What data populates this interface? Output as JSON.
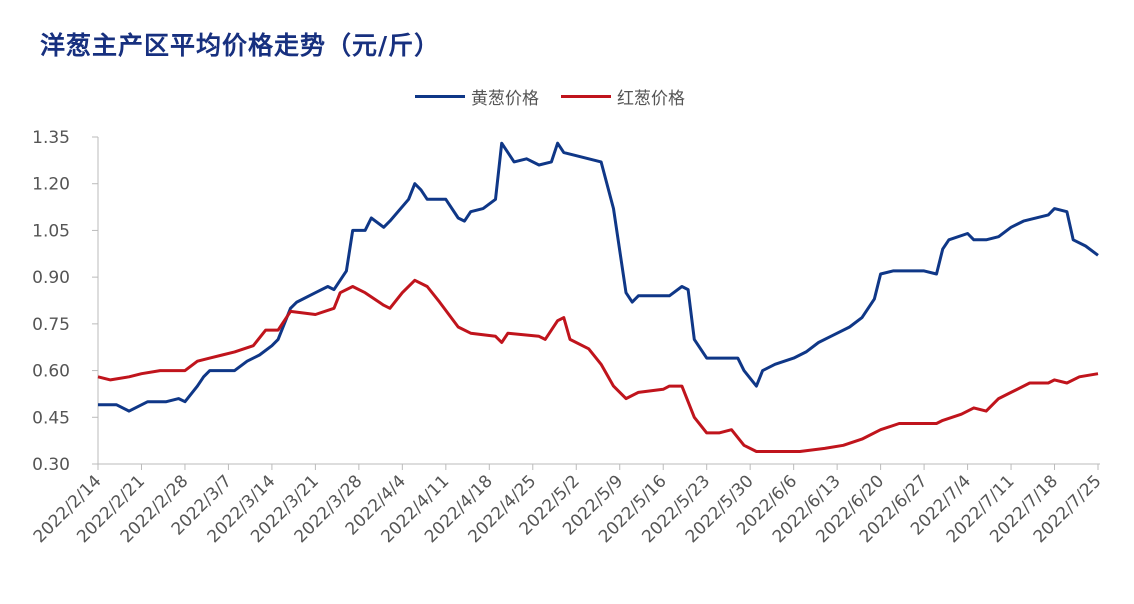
{
  "chart_data": {
    "type": "line",
    "title": "洋葱主产区平均价格走势（元/斤）",
    "xlabel": "",
    "ylabel": "",
    "ylim": [
      0.3,
      1.35
    ],
    "yticks": [
      "0.30",
      "0.45",
      "0.60",
      "0.75",
      "0.90",
      "1.05",
      "1.20",
      "1.35"
    ],
    "xlim": [
      "2022/2/14",
      "2022/7/25"
    ],
    "xticks": [
      "2022/2/14",
      "2022/2/21",
      "2022/2/28",
      "2022/3/7",
      "2022/3/14",
      "2022/3/21",
      "2022/3/28",
      "2022/4/4",
      "2022/4/11",
      "2022/4/18",
      "2022/4/25",
      "2022/5/2",
      "2022/5/9",
      "2022/5/16",
      "2022/5/23",
      "2022/5/30",
      "2022/6/6",
      "2022/6/13",
      "2022/6/20",
      "2022/6/27",
      "2022/7/4",
      "2022/7/11",
      "2022/7/18",
      "2022/7/25"
    ],
    "grid": false,
    "legend_position": "top-right",
    "series": [
      {
        "name": "黄葱价格",
        "color": "#0f3787",
        "points": [
          [
            "2022/2/14",
            0.49
          ],
          [
            "2022/2/17",
            0.49
          ],
          [
            "2022/2/19",
            0.47
          ],
          [
            "2022/2/21",
            0.49
          ],
          [
            "2022/2/22",
            0.5
          ],
          [
            "2022/2/25",
            0.5
          ],
          [
            "2022/2/27",
            0.51
          ],
          [
            "2022/2/28",
            0.5
          ],
          [
            "2022/3/2",
            0.55
          ],
          [
            "2022/3/3",
            0.58
          ],
          [
            "2022/3/4",
            0.6
          ],
          [
            "2022/3/8",
            0.6
          ],
          [
            "2022/3/10",
            0.63
          ],
          [
            "2022/3/12",
            0.65
          ],
          [
            "2022/3/14",
            0.68
          ],
          [
            "2022/3/15",
            0.7
          ],
          [
            "2022/3/17",
            0.8
          ],
          [
            "2022/3/18",
            0.82
          ],
          [
            "2022/3/21",
            0.85
          ],
          [
            "2022/3/23",
            0.87
          ],
          [
            "2022/3/24",
            0.86
          ],
          [
            "2022/3/26",
            0.92
          ],
          [
            "2022/3/27",
            1.05
          ],
          [
            "2022/3/29",
            1.05
          ],
          [
            "2022/3/30",
            1.09
          ],
          [
            "2022/4/1",
            1.06
          ],
          [
            "2022/4/2",
            1.08
          ],
          [
            "2022/4/5",
            1.15
          ],
          [
            "2022/4/6",
            1.2
          ],
          [
            "2022/4/7",
            1.18
          ],
          [
            "2022/4/8",
            1.15
          ],
          [
            "2022/4/11",
            1.15
          ],
          [
            "2022/4/13",
            1.09
          ],
          [
            "2022/4/14",
            1.08
          ],
          [
            "2022/4/15",
            1.11
          ],
          [
            "2022/4/17",
            1.12
          ],
          [
            "2022/4/19",
            1.15
          ],
          [
            "2022/4/20",
            1.33
          ],
          [
            "2022/4/22",
            1.27
          ],
          [
            "2022/4/24",
            1.28
          ],
          [
            "2022/4/26",
            1.26
          ],
          [
            "2022/4/28",
            1.27
          ],
          [
            "2022/4/29",
            1.33
          ],
          [
            "2022/4/30",
            1.3
          ],
          [
            "2022/5/2",
            1.29
          ],
          [
            "2022/5/6",
            1.27
          ],
          [
            "2022/5/8",
            1.12
          ],
          [
            "2022/5/10",
            0.85
          ],
          [
            "2022/5/11",
            0.82
          ],
          [
            "2022/5/12",
            0.84
          ],
          [
            "2022/5/17",
            0.84
          ],
          [
            "2022/5/19",
            0.87
          ],
          [
            "2022/5/20",
            0.86
          ],
          [
            "2022/5/21",
            0.7
          ],
          [
            "2022/5/23",
            0.64
          ],
          [
            "2022/5/28",
            0.64
          ],
          [
            "2022/5/29",
            0.6
          ],
          [
            "2022/5/31",
            0.55
          ],
          [
            "2022/6/1",
            0.6
          ],
          [
            "2022/6/3",
            0.62
          ],
          [
            "2022/6/6",
            0.64
          ],
          [
            "2022/6/8",
            0.66
          ],
          [
            "2022/6/10",
            0.69
          ],
          [
            "2022/6/12",
            0.71
          ],
          [
            "2022/6/15",
            0.74
          ],
          [
            "2022/6/17",
            0.77
          ],
          [
            "2022/6/19",
            0.83
          ],
          [
            "2022/6/20",
            0.91
          ],
          [
            "2022/6/22",
            0.92
          ],
          [
            "2022/6/27",
            0.92
          ],
          [
            "2022/6/29",
            0.91
          ],
          [
            "2022/6/30",
            0.99
          ],
          [
            "2022/7/1",
            1.02
          ],
          [
            "2022/7/4",
            1.04
          ],
          [
            "2022/7/5",
            1.02
          ],
          [
            "2022/7/7",
            1.02
          ],
          [
            "2022/7/9",
            1.03
          ],
          [
            "2022/7/11",
            1.06
          ],
          [
            "2022/7/13",
            1.08
          ],
          [
            "2022/7/17",
            1.1
          ],
          [
            "2022/7/18",
            1.12
          ],
          [
            "2022/7/20",
            1.11
          ],
          [
            "2022/7/21",
            1.02
          ],
          [
            "2022/7/23",
            1.0
          ],
          [
            "2022/7/25",
            0.97
          ]
        ]
      },
      {
        "name": "红葱价格",
        "color": "#c0141c",
        "points": [
          [
            "2022/2/14",
            0.58
          ],
          [
            "2022/2/16",
            0.57
          ],
          [
            "2022/2/19",
            0.58
          ],
          [
            "2022/2/21",
            0.59
          ],
          [
            "2022/2/24",
            0.6
          ],
          [
            "2022/2/28",
            0.6
          ],
          [
            "2022/3/2",
            0.63
          ],
          [
            "2022/3/4",
            0.64
          ],
          [
            "2022/3/6",
            0.65
          ],
          [
            "2022/3/8",
            0.66
          ],
          [
            "2022/3/11",
            0.68
          ],
          [
            "2022/3/13",
            0.73
          ],
          [
            "2022/3/15",
            0.73
          ],
          [
            "2022/3/17",
            0.79
          ],
          [
            "2022/3/21",
            0.78
          ],
          [
            "2022/3/24",
            0.8
          ],
          [
            "2022/3/25",
            0.85
          ],
          [
            "2022/3/27",
            0.87
          ],
          [
            "2022/3/29",
            0.85
          ],
          [
            "2022/4/1",
            0.81
          ],
          [
            "2022/4/2",
            0.8
          ],
          [
            "2022/4/4",
            0.85
          ],
          [
            "2022/4/6",
            0.89
          ],
          [
            "2022/4/8",
            0.87
          ],
          [
            "2022/4/10",
            0.82
          ],
          [
            "2022/4/13",
            0.74
          ],
          [
            "2022/4/15",
            0.72
          ],
          [
            "2022/4/19",
            0.71
          ],
          [
            "2022/4/20",
            0.69
          ],
          [
            "2022/4/21",
            0.72
          ],
          [
            "2022/4/26",
            0.71
          ],
          [
            "2022/4/27",
            0.7
          ],
          [
            "2022/4/28",
            0.73
          ],
          [
            "2022/4/29",
            0.76
          ],
          [
            "2022/4/30",
            0.77
          ],
          [
            "2022/5/1",
            0.7
          ],
          [
            "2022/5/4",
            0.67
          ],
          [
            "2022/5/6",
            0.62
          ],
          [
            "2022/5/8",
            0.55
          ],
          [
            "2022/5/10",
            0.51
          ],
          [
            "2022/5/12",
            0.53
          ],
          [
            "2022/5/16",
            0.54
          ],
          [
            "2022/5/17",
            0.55
          ],
          [
            "2022/5/19",
            0.55
          ],
          [
            "2022/5/20",
            0.5
          ],
          [
            "2022/5/21",
            0.45
          ],
          [
            "2022/5/23",
            0.4
          ],
          [
            "2022/5/25",
            0.4
          ],
          [
            "2022/5/27",
            0.41
          ],
          [
            "2022/5/29",
            0.36
          ],
          [
            "2022/5/31",
            0.34
          ],
          [
            "2022/6/7",
            0.34
          ],
          [
            "2022/6/11",
            0.35
          ],
          [
            "2022/6/14",
            0.36
          ],
          [
            "2022/6/17",
            0.38
          ],
          [
            "2022/6/20",
            0.41
          ],
          [
            "2022/6/23",
            0.43
          ],
          [
            "2022/6/29",
            0.43
          ],
          [
            "2022/6/30",
            0.44
          ],
          [
            "2022/7/3",
            0.46
          ],
          [
            "2022/7/5",
            0.48
          ],
          [
            "2022/7/7",
            0.47
          ],
          [
            "2022/7/9",
            0.51
          ],
          [
            "2022/7/11",
            0.53
          ],
          [
            "2022/7/14",
            0.56
          ],
          [
            "2022/7/17",
            0.56
          ],
          [
            "2022/7/18",
            0.57
          ],
          [
            "2022/7/20",
            0.56
          ],
          [
            "2022/7/22",
            0.58
          ],
          [
            "2022/7/25",
            0.59
          ]
        ]
      }
    ]
  }
}
